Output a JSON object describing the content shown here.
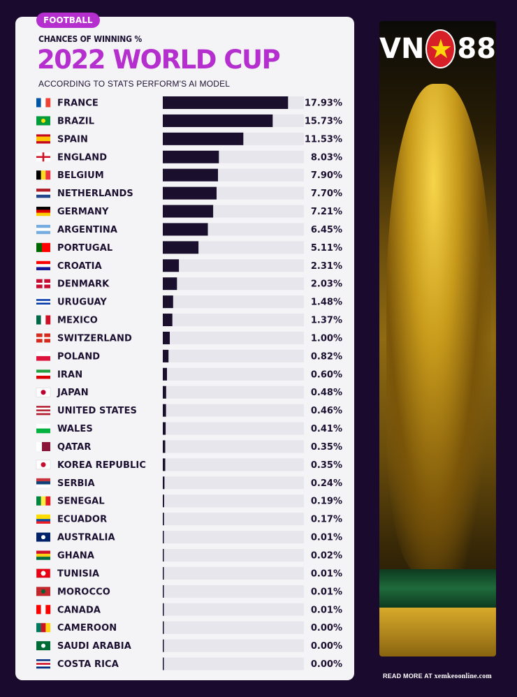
{
  "header": {
    "badge": "FOOTBALL",
    "subtitle": "CHANCES OF WINNING %",
    "title": "2022 WORLD CUP",
    "source": "ACCORDING TO STATS PERFORM'S AI MODEL"
  },
  "logo": {
    "left": "VN",
    "right": "88"
  },
  "footer": {
    "label": "READ MORE AT",
    "site": "xemkeoonline.com"
  },
  "colors": {
    "bar": "#1b0f2e",
    "track": "#e6e6ec",
    "accent": "#b52fcf",
    "background": "#1a0b2e"
  },
  "chart_data": {
    "type": "bar",
    "orientation": "horizontal",
    "xlim": [
      0,
      20
    ],
    "categories": [
      "FRANCE",
      "BRAZIL",
      "SPAIN",
      "ENGLAND",
      "BELGIUM",
      "NETHERLANDS",
      "GERMANY",
      "ARGENTINA",
      "PORTUGAL",
      "CROATIA",
      "DENMARK",
      "URUGUAY",
      "MEXICO",
      "SWITZERLAND",
      "POLAND",
      "IRAN",
      "JAPAN",
      "UNITED STATES",
      "WALES",
      "QATAR",
      "KOREA REPUBLIC",
      "SERBIA",
      "SENEGAL",
      "ECUADOR",
      "AUSTRALIA",
      "GHANA",
      "TUNISIA",
      "MOROCCO",
      "CANADA",
      "CAMEROON",
      "SAUDI ARABIA",
      "COSTA RICA"
    ],
    "values": [
      17.93,
      15.73,
      11.53,
      8.03,
      7.9,
      7.7,
      7.21,
      6.45,
      5.11,
      2.31,
      2.03,
      1.48,
      1.37,
      1.0,
      0.82,
      0.6,
      0.48,
      0.46,
      0.41,
      0.35,
      0.35,
      0.24,
      0.19,
      0.17,
      0.01,
      0.02,
      0.01,
      0.01,
      0.01,
      0.0,
      0.0,
      0.0
    ],
    "labels": [
      "17.93%",
      "15.73%",
      "11.53%",
      "8.03%",
      "7.90%",
      "7.70%",
      "7.21%",
      "6.45%",
      "5.11%",
      "2.31%",
      "2.03%",
      "1.48%",
      "1.37%",
      "1.00%",
      "0.82%",
      "0.60%",
      "0.48%",
      "0.46%",
      "0.41%",
      "0.35%",
      "0.35%",
      "0.24%",
      "0.19%",
      "0.17%",
      "0.01%",
      "0.02%",
      "0.01%",
      "0.01%",
      "0.01%",
      "0.00%",
      "0.00%",
      "0.00%"
    ],
    "flags": [
      {
        "type": "v",
        "colors": [
          "#0055a4",
          "#ffffff",
          "#ef4135"
        ]
      },
      {
        "type": "solid",
        "colors": [
          "#009c3b",
          "#ffdf00"
        ]
      },
      {
        "type": "h",
        "colors": [
          "#c60b1e",
          "#ffc400",
          "#ffc400",
          "#c60b1e"
        ]
      },
      {
        "type": "cross",
        "colors": [
          "#ffffff",
          "#ce1124"
        ]
      },
      {
        "type": "v",
        "colors": [
          "#000000",
          "#fdda24",
          "#ef3340"
        ]
      },
      {
        "type": "h",
        "colors": [
          "#ae1c28",
          "#ffffff",
          "#21468b"
        ]
      },
      {
        "type": "h",
        "colors": [
          "#000000",
          "#dd0000",
          "#ffce00"
        ]
      },
      {
        "type": "h",
        "colors": [
          "#74acdf",
          "#ffffff",
          "#74acdf"
        ]
      },
      {
        "type": "v2",
        "colors": [
          "#006600",
          "#ff0000"
        ]
      },
      {
        "type": "h",
        "colors": [
          "#ff0000",
          "#ffffff",
          "#171796"
        ]
      },
      {
        "type": "cross",
        "colors": [
          "#c60c30",
          "#ffffff"
        ]
      },
      {
        "type": "h",
        "colors": [
          "#ffffff",
          "#0038a8",
          "#ffffff",
          "#0038a8",
          "#ffffff"
        ]
      },
      {
        "type": "v",
        "colors": [
          "#006847",
          "#ffffff",
          "#ce1126"
        ]
      },
      {
        "type": "cross",
        "colors": [
          "#d52b1e",
          "#ffffff"
        ]
      },
      {
        "type": "h",
        "colors": [
          "#ffffff",
          "#dc143c"
        ]
      },
      {
        "type": "h",
        "colors": [
          "#239f40",
          "#ffffff",
          "#da0000"
        ]
      },
      {
        "type": "disc",
        "colors": [
          "#ffffff",
          "#bc002d"
        ]
      },
      {
        "type": "h",
        "colors": [
          "#b22234",
          "#ffffff",
          "#b22234",
          "#ffffff",
          "#b22234"
        ]
      },
      {
        "type": "h",
        "colors": [
          "#ffffff",
          "#00b140"
        ]
      },
      {
        "type": "v2",
        "colors": [
          "#ffffff",
          "#8a1538"
        ]
      },
      {
        "type": "disc",
        "colors": [
          "#ffffff",
          "#c60c30"
        ]
      },
      {
        "type": "h",
        "colors": [
          "#c6363c",
          "#0c4076",
          "#ffffff"
        ]
      },
      {
        "type": "v",
        "colors": [
          "#00853f",
          "#fdef42",
          "#e31b23"
        ]
      },
      {
        "type": "h",
        "colors": [
          "#ffdd00",
          "#ffdd00",
          "#034ea2",
          "#ed1c24"
        ]
      },
      {
        "type": "solid",
        "colors": [
          "#012169",
          "#ffffff"
        ]
      },
      {
        "type": "h",
        "colors": [
          "#ce1126",
          "#fcd116",
          "#006b3f"
        ]
      },
      {
        "type": "disc",
        "colors": [
          "#e70013",
          "#ffffff"
        ]
      },
      {
        "type": "solid",
        "colors": [
          "#c1272d",
          "#006233"
        ]
      },
      {
        "type": "v",
        "colors": [
          "#ff0000",
          "#ffffff",
          "#ff0000"
        ]
      },
      {
        "type": "v",
        "colors": [
          "#007a5e",
          "#ce1126",
          "#fcd116"
        ]
      },
      {
        "type": "solid",
        "colors": [
          "#006c35",
          "#ffffff"
        ]
      },
      {
        "type": "h",
        "colors": [
          "#002b7f",
          "#ffffff",
          "#ce1126",
          "#ffffff",
          "#002b7f"
        ]
      }
    ]
  }
}
